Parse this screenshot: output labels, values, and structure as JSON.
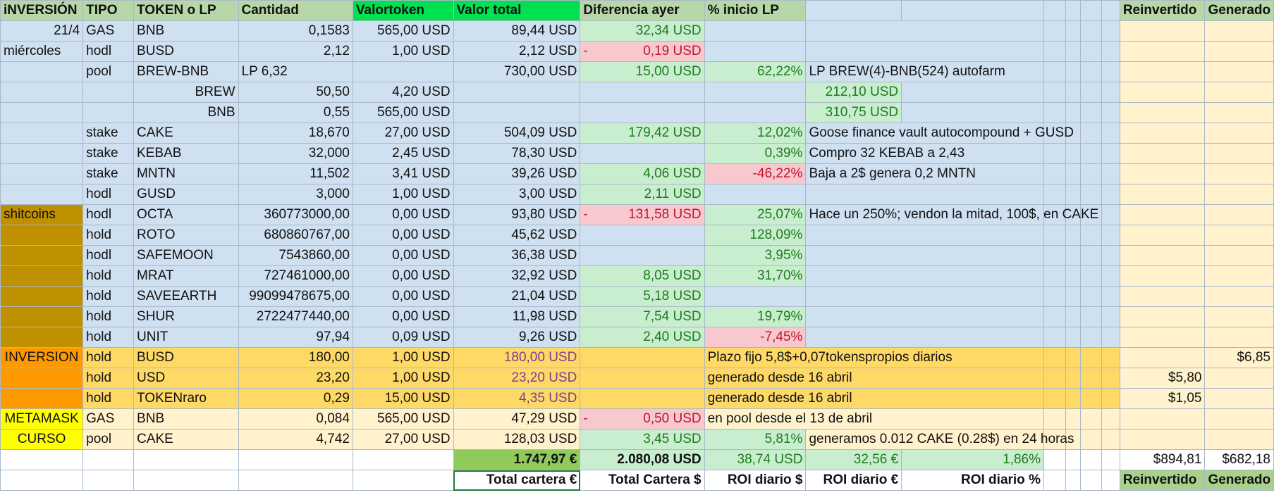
{
  "header": {
    "inversion": "iNVERSIÓN",
    "tipo": "TIPO",
    "token": "TOKEN o LP",
    "cantidad": "Cantidad",
    "valortoken": "Valortoken",
    "valortotal": "Valor total",
    "diferencia": "Diferencia ayer",
    "inicio": "% inicio LP",
    "reinvertido": "Reinvertido",
    "generado": "Generado"
  },
  "rows": [
    {
      "inv": "21/4",
      "tipo": "GAS",
      "token": "BNB",
      "cantidad": "0,1583",
      "valortoken": "565,00 USD",
      "valortotal": "89,44 USD",
      "dif": "32,34 USD",
      "difneg": "",
      "inicio": "",
      "note": "",
      "extra": "",
      "reinv": "",
      "gen": ""
    },
    {
      "inv": "miércoles",
      "tipo": "hodl",
      "token": "BUSD",
      "cantidad": "2,12",
      "valortoken": "1,00 USD",
      "valortotal": "2,12 USD",
      "dif": "0,19 USD",
      "difneg": "-",
      "inicio": "",
      "note": "",
      "extra": "",
      "reinv": "",
      "gen": ""
    },
    {
      "inv": "",
      "tipo": "pool",
      "token": "BREW-BNB",
      "cantidad": "LP 6,32",
      "valortoken": "",
      "valortotal": "730,00 USD",
      "dif": "15,00 USD",
      "difneg": "",
      "inicio": "62,22%",
      "note": "LP BREW(4)-BNB(524) autofarm",
      "extra": "",
      "reinv": "",
      "gen": ""
    },
    {
      "inv": "",
      "tipo": "",
      "token": "BREW",
      "cantidad": "50,50",
      "valortoken": "4,20 USD",
      "valortotal": "",
      "dif": "",
      "difneg": "",
      "inicio": "",
      "note": "",
      "extra": "212,10 USD",
      "reinv": "",
      "gen": ""
    },
    {
      "inv": "",
      "tipo": "",
      "token": "BNB",
      "cantidad": "0,55",
      "valortoken": "565,00 USD",
      "valortotal": "",
      "dif": "",
      "difneg": "",
      "inicio": "",
      "note": "",
      "extra": "310,75 USD",
      "reinv": "",
      "gen": ""
    },
    {
      "inv": "",
      "tipo": "stake",
      "token": "CAKE",
      "cantidad": "18,670",
      "valortoken": "27,00 USD",
      "valortotal": "504,09 USD",
      "dif": "179,42 USD",
      "difneg": "",
      "inicio": "12,02%",
      "note": "Goose finance vault autocompound + GUSD",
      "extra": "",
      "reinv": "",
      "gen": ""
    },
    {
      "inv": "",
      "tipo": "stake",
      "token": "KEBAB",
      "cantidad": "32,000",
      "valortoken": "2,45 USD",
      "valortotal": "78,30 USD",
      "dif": "",
      "difneg": "",
      "inicio": "0,39%",
      "note": "Compro 32 KEBAB a 2,43",
      "extra": "",
      "reinv": "",
      "gen": ""
    },
    {
      "inv": "",
      "tipo": "stake",
      "token": "MNTN",
      "cantidad": "11,502",
      "valortoken": "3,41 USD",
      "valortotal": "39,26 USD",
      "dif": "4,06 USD",
      "difneg": "",
      "inicio": "-46,22%",
      "note": "Baja a 2$ genera 0,2 MNTN",
      "extra": "",
      "reinv": "",
      "gen": ""
    },
    {
      "inv": "",
      "tipo": "hodl",
      "token": "GUSD",
      "cantidad": "3,000",
      "valortoken": "1,00 USD",
      "valortotal": "3,00 USD",
      "dif": "2,11 USD",
      "difneg": "",
      "inicio": "",
      "note": "",
      "extra": "",
      "reinv": "",
      "gen": ""
    },
    {
      "inv": "shitcoins",
      "tipo": "hodl",
      "token": "OCTA",
      "cantidad": "360773000,00",
      "valortoken": "0,00 USD",
      "valortotal": "93,80 USD",
      "dif": "131,58 USD",
      "difneg": "-",
      "inicio": "25,07%",
      "note": "Hace un 250%; vendon la mitad, 100$, en CAKE",
      "extra": "",
      "reinv": "",
      "gen": ""
    },
    {
      "inv": "",
      "tipo": "hold",
      "token": "ROTO",
      "cantidad": "680860767,00",
      "valortoken": "0,00 USD",
      "valortotal": "45,62 USD",
      "dif": "",
      "difneg": "",
      "inicio": "128,09%",
      "note": "",
      "extra": "",
      "reinv": "",
      "gen": ""
    },
    {
      "inv": "",
      "tipo": "hodl",
      "token": "SAFEMOON",
      "cantidad": "7543860,00",
      "valortoken": "0,00 USD",
      "valortotal": "36,38 USD",
      "dif": "",
      "difneg": "",
      "inicio": "3,95%",
      "note": "",
      "extra": "",
      "reinv": "",
      "gen": ""
    },
    {
      "inv": "",
      "tipo": "hold",
      "token": "MRAT",
      "cantidad": "727461000,00",
      "valortoken": "0,00 USD",
      "valortotal": "32,92 USD",
      "dif": "8,05 USD",
      "difneg": "",
      "inicio": "31,70%",
      "note": "",
      "extra": "",
      "reinv": "",
      "gen": ""
    },
    {
      "inv": "",
      "tipo": "hold",
      "token": "SAVEEARTH",
      "cantidad": "99099478675,00",
      "valortoken": "0,00 USD",
      "valortotal": "21,04 USD",
      "dif": "5,18 USD",
      "difneg": "",
      "inicio": "",
      "note": "",
      "extra": "",
      "reinv": "",
      "gen": ""
    },
    {
      "inv": "",
      "tipo": "hold",
      "token": "SHUR",
      "cantidad": "2722477440,00",
      "valortoken": "0,00 USD",
      "valortotal": "11,98 USD",
      "dif": "7,54 USD",
      "difneg": "",
      "inicio": "19,79%",
      "note": "",
      "extra": "",
      "reinv": "",
      "gen": ""
    },
    {
      "inv": "",
      "tipo": "hold",
      "token": "UNIT",
      "cantidad": "97,94",
      "valortoken": "0,09 USD",
      "valortotal": "9,26 USD",
      "dif": "2,40 USD",
      "difneg": "",
      "inicio": "-7,45%",
      "note": "",
      "extra": "",
      "reinv": "",
      "gen": ""
    },
    {
      "inv": "INVERSION",
      "tipo": "hold",
      "token": "BUSD",
      "cantidad": "180,00",
      "valortoken": "1,00 USD",
      "valortotal": "180,00 USD",
      "dif": "",
      "difneg": "",
      "inicio": "",
      "note": "Plazo fijo 5,8$+0,07tokenspropios diarios",
      "extra": "",
      "reinv": "",
      "gen": "$6,85"
    },
    {
      "inv": "",
      "tipo": "hold",
      "token": "USD",
      "cantidad": "23,20",
      "valortoken": "1,00 USD",
      "valortotal": "23,20 USD",
      "dif": "",
      "difneg": "",
      "inicio": "",
      "note": "generado desde 16 abril",
      "extra": "",
      "reinv": "$5,80",
      "gen": ""
    },
    {
      "inv": "",
      "tipo": "hold",
      "token": "TOKENraro",
      "cantidad": "0,29",
      "valortoken": "15,00 USD",
      "valortotal": "4,35 USD",
      "dif": "",
      "difneg": "",
      "inicio": "",
      "note": "generado desde 16 abril",
      "extra": "",
      "reinv": "$1,05",
      "gen": ""
    },
    {
      "inv": "METAMASK",
      "tipo": "GAS",
      "token": "BNB",
      "cantidad": "0,084",
      "valortoken": "565,00 USD",
      "valortotal": "47,29 USD",
      "dif": "0,50 USD",
      "difneg": "-",
      "inicio": "",
      "note": "en pool desde el 13 de abril",
      "extra": "",
      "reinv": "",
      "gen": ""
    },
    {
      "inv": "CURSO",
      "tipo": "pool",
      "token": "CAKE",
      "cantidad": "4,742",
      "valortoken": "27,00 USD",
      "valortotal": "128,03 USD",
      "dif": "3,45 USD",
      "difneg": "",
      "inicio": "5,81%",
      "note": "generamos 0.012 CAKE (0.28$) en 24 horas",
      "extra": "",
      "reinv": "",
      "gen": ""
    }
  ],
  "totals": {
    "eur": "1.747,97 €",
    "usd": "2.080,08 USD",
    "roi_usd": "38,74 USD",
    "roi_eur": "32,56 €",
    "roi_pct": "1,86%",
    "reinvertido": "$894,81",
    "generado": "$682,18"
  },
  "footer": {
    "total_eur": "Total cartera €",
    "total_usd": "Total Cartera $",
    "roi_usd": "ROI diario $",
    "roi_eur": "ROI diario €",
    "roi_pct": "ROI diario %",
    "reinvertido": "Reinvertido",
    "generado": "Generado"
  },
  "colors": {
    "header_green": "#b7d7a8",
    "header_bright_green": "#00e050",
    "row_blue": "#cfe0f1",
    "positive_green": "#c8eecf",
    "negative_pink": "#f8c8cf",
    "shitcoins_gold": "#bf9000",
    "inversion_orange": "#ff9900",
    "inversion_amber": "#ffd966",
    "cream": "#fff2cc",
    "metamask_yellow": "#ffff00"
  }
}
